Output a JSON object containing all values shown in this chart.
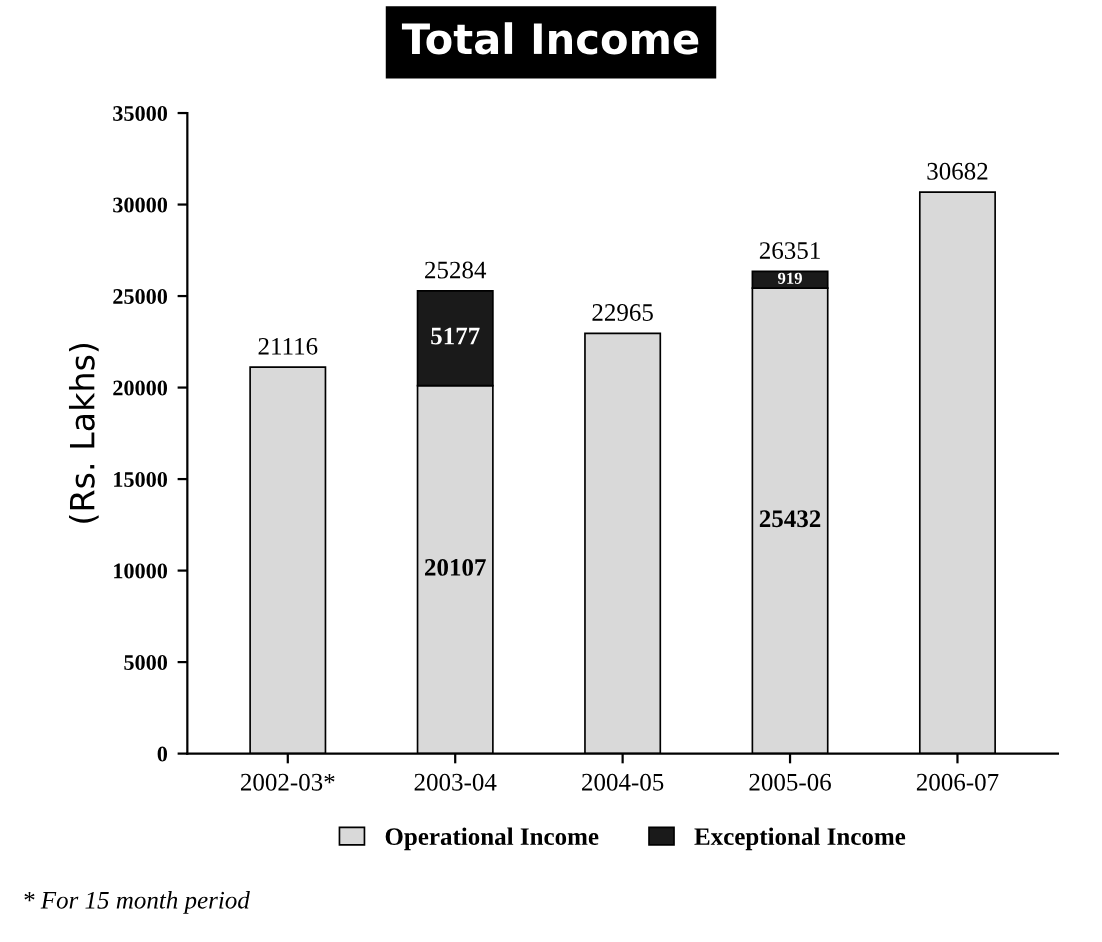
{
  "chart_data": {
    "type": "bar",
    "title": "Total Income",
    "ylabel": "(Rs. Lakhs)",
    "categories": [
      "2002-03*",
      "2003-04",
      "2004-05",
      "2005-06",
      "2006-07"
    ],
    "stacked": true,
    "series": [
      {
        "name": "Operational Income",
        "color": "#d9d9d9",
        "values": [
          21116,
          20107,
          22965,
          25432,
          30682
        ],
        "value_labels": [
          null,
          "20107",
          null,
          "25432",
          null
        ]
      },
      {
        "name": "Exceptional Income",
        "color": "#1a1a1a",
        "values": [
          null,
          5177,
          null,
          919,
          null
        ],
        "value_labels": [
          null,
          "5177",
          null,
          "919",
          null
        ]
      }
    ],
    "totals": [
      "21116",
      "25284",
      "22965",
      "26351",
      "30682"
    ],
    "ylim": [
      0,
      35000
    ],
    "yticks": [
      0,
      5000,
      10000,
      15000,
      20000,
      25000,
      30000,
      35000
    ],
    "grid": false,
    "legend": "bottom",
    "annotations": [
      "* For 15 month period"
    ]
  }
}
